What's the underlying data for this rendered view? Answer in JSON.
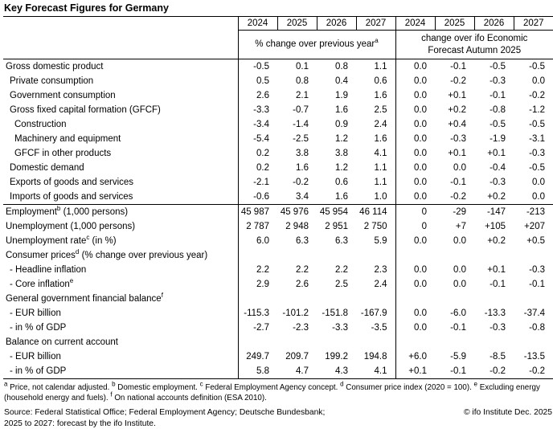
{
  "title": "Key Forecast Figures for Germany",
  "header": {
    "years": [
      "2024",
      "2025",
      "2026",
      "2027",
      "2024",
      "2025",
      "2026",
      "2027"
    ],
    "group_left": {
      "text": "% change over previous year",
      "sup": "a"
    },
    "group_right": {
      "line1": "change over ifo Economic",
      "line2": "Forecast Autumn 2025"
    }
  },
  "table": {
    "rows": [
      {
        "label": [
          {
            "t": "Gross domestic product"
          }
        ],
        "indent": 0,
        "values": [
          "-0.5",
          "0.1",
          "0.8",
          "1.1",
          "0.0",
          "-0.1",
          "-0.5",
          "-0.5"
        ]
      },
      {
        "label": [
          {
            "t": "Private consumption"
          }
        ],
        "indent": 1,
        "values": [
          "0.5",
          "0.8",
          "0.4",
          "0.6",
          "0.0",
          "-0.2",
          "-0.3",
          "0.0"
        ]
      },
      {
        "label": [
          {
            "t": "Government consumption"
          }
        ],
        "indent": 1,
        "values": [
          "2.6",
          "2.1",
          "1.9",
          "1.6",
          "0.0",
          "+0.1",
          "-0.1",
          "-0.2"
        ]
      },
      {
        "label": [
          {
            "t": "Gross fixed capital formation (GFCF)"
          }
        ],
        "indent": 1,
        "values": [
          "-3.3",
          "-0.7",
          "1.6",
          "2.5",
          "0.0",
          "+0.2",
          "-0.8",
          "-1.2"
        ]
      },
      {
        "label": [
          {
            "t": "Construction"
          }
        ],
        "indent": 2,
        "values": [
          "-3.4",
          "-1.4",
          "0.9",
          "2.4",
          "0.0",
          "+0.4",
          "-0.5",
          "-0.5"
        ]
      },
      {
        "label": [
          {
            "t": "Machinery and equipment"
          }
        ],
        "indent": 2,
        "values": [
          "-5.4",
          "-2.5",
          "1.2",
          "1.6",
          "0.0",
          "-0.3",
          "-1.9",
          "-3.1"
        ]
      },
      {
        "label": [
          {
            "t": "GFCF in other products"
          }
        ],
        "indent": 2,
        "values": [
          "0.2",
          "3.8",
          "3.8",
          "4.1",
          "0.0",
          "+0.1",
          "+0.1",
          "-0.3"
        ]
      },
      {
        "label": [
          {
            "t": "Domestic demand"
          }
        ],
        "indent": 1,
        "values": [
          "0.2",
          "1.6",
          "1.2",
          "1.1",
          "0.0",
          "0.0",
          "-0.4",
          "-0.5"
        ]
      },
      {
        "label": [
          {
            "t": "Exports of goods and services"
          }
        ],
        "indent": 1,
        "values": [
          "-2.1",
          "-0.2",
          "0.6",
          "1.1",
          "0.0",
          "-0.1",
          "-0.3",
          "0.0"
        ]
      },
      {
        "label": [
          {
            "t": "Imports of goods and services"
          }
        ],
        "indent": 1,
        "values": [
          "-0.6",
          "3.4",
          "1.6",
          "1.0",
          "0.0",
          "-0.2",
          "+0.2",
          "0.0"
        ],
        "rule_after": true
      },
      {
        "label": [
          {
            "t": "Employment"
          },
          {
            "sup": "b"
          },
          {
            "t": " (1,000 persons)"
          }
        ],
        "indent": 0,
        "values": [
          "45 987",
          "45 976",
          "45 954",
          "46 114",
          "0",
          "-29",
          "-147",
          "-213"
        ]
      },
      {
        "label": [
          {
            "t": "Unemployment (1,000 persons)"
          }
        ],
        "indent": 0,
        "values": [
          "2 787",
          "2 948",
          "2 951",
          "2 750",
          "0",
          "+7",
          "+105",
          "+207"
        ]
      },
      {
        "label": [
          {
            "t": "Unemployment rate"
          },
          {
            "sup": "c"
          },
          {
            "t": " (in %)"
          }
        ],
        "indent": 0,
        "values": [
          "6.0",
          "6.3",
          "6.3",
          "5.9",
          "0.0",
          "0.0",
          "+0.2",
          "+0.5"
        ]
      },
      {
        "label": [
          {
            "t": "Consumer prices"
          },
          {
            "sup": "d"
          },
          {
            "t": " (% change over previous year)"
          }
        ],
        "indent": 0,
        "values": [
          "",
          "",
          "",
          "",
          "",
          "",
          "",
          ""
        ]
      },
      {
        "label": [
          {
            "t": "- Headline inflation"
          }
        ],
        "indent": 1,
        "values": [
          "2.2",
          "2.2",
          "2.2",
          "2.3",
          "0.0",
          "0.0",
          "+0.1",
          "-0.3"
        ]
      },
      {
        "label": [
          {
            "t": "- Core inflation"
          },
          {
            "sup": "e"
          }
        ],
        "indent": 1,
        "values": [
          "2.9",
          "2.6",
          "2.5",
          "2.4",
          "0.0",
          "0.0",
          "-0.1",
          "-0.1"
        ]
      },
      {
        "label": [
          {
            "t": "General government financial balance"
          },
          {
            "sup": "f"
          }
        ],
        "indent": 0,
        "values": [
          "",
          "",
          "",
          "",
          "",
          "",
          "",
          ""
        ]
      },
      {
        "label": [
          {
            "t": "- EUR billion"
          }
        ],
        "indent": 1,
        "values": [
          "-115.3",
          "-101.2",
          "-151.8",
          "-167.9",
          "0.0",
          "-6.0",
          "-13.3",
          "-37.4"
        ]
      },
      {
        "label": [
          {
            "t": "- in % of GDP"
          }
        ],
        "indent": 1,
        "values": [
          "-2.7",
          "-2.3",
          "-3.3",
          "-3.5",
          "0.0",
          "-0.1",
          "-0.3",
          "-0.8"
        ]
      },
      {
        "label": [
          {
            "t": "Balance on current account"
          }
        ],
        "indent": 0,
        "values": [
          "",
          "",
          "",
          "",
          "",
          "",
          "",
          ""
        ]
      },
      {
        "label": [
          {
            "t": "- EUR billion"
          }
        ],
        "indent": 1,
        "values": [
          "249.7",
          "209.7",
          "199.2",
          "194.8",
          "+6.0",
          "-5.9",
          "-8.5",
          "-13.5"
        ]
      },
      {
        "label": [
          {
            "t": "- in % of GDP"
          }
        ],
        "indent": 1,
        "values": [
          "5.8",
          "4.7",
          "4.3",
          "4.1",
          "+0.1",
          "-0.1",
          "-0.2",
          "-0.2"
        ],
        "rule_after": true
      }
    ]
  },
  "footnotes": [
    {
      "sup": "a",
      "t": " Price, not calendar adjusted. "
    },
    {
      "sup": "b",
      "t": " Domestic employment. "
    },
    {
      "sup": "c",
      "t": " Federal Employment Agency concept. "
    },
    {
      "sup": "d",
      "t": " Consumer price index (2020 = 100). "
    },
    {
      "sup": "e",
      "t": " Excluding energy (household energy and fuels). "
    },
    {
      "sup": "f",
      "t": " On national accounts definition (ESA 2010)."
    }
  ],
  "source": {
    "line1": "Source: Federal Statistical Office; Federal Employment Agency; Deutsche Bundesbank;",
    "line2": "2025 to 2027: forecast by the ifo Institute.",
    "copyright": "© ifo Institute Dec. 2025"
  }
}
